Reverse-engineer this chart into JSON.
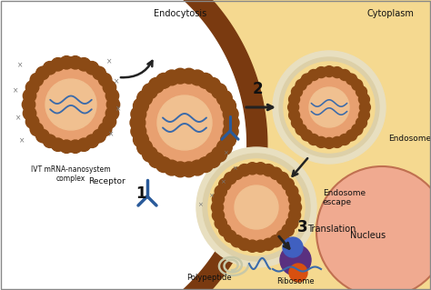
{
  "bg_white": "#ffffff",
  "bg_cell": "#f5d990",
  "cell_border_dark": "#7a3a10",
  "cell_border_mid": "#a05020",
  "np_brown": "#8B4a15",
  "np_inner": "#e8a070",
  "np_core": "#f0c090",
  "endo_ring": "#ddd0a8",
  "endo_ring2": "#e8dfc0",
  "mrna_color": "#3a6aaa",
  "receptor_color": "#2a5a9a",
  "ribo_purple": "#5a3080",
  "ribo_blue": "#4060c0",
  "ribo_orange": "#d85010",
  "poly_color": "#c8c8a8",
  "text_color": "#111111",
  "arrow_color": "#222222",
  "border_color": "#888888",
  "nucleus_color": "#f0aa90",
  "nucleus_border": "#c07050",
  "labels": {
    "endocytosis": "Endocytosis",
    "cytoplasm": "Cytoplasm",
    "endosome": "Endosome",
    "endosome_escape": "Endosome\nescape",
    "receptor": "Receptor",
    "ivt": "IVT mRNA-nanosystem\ncomplex",
    "polypeptide": "Polypeptide",
    "translation": "Translation",
    "ribosome": "Ribosome",
    "nucleus": "Nucleus",
    "s1": "1",
    "s2": "2",
    "s3": "3"
  },
  "figsize": [
    4.74,
    3.19
  ],
  "dpi": 100
}
